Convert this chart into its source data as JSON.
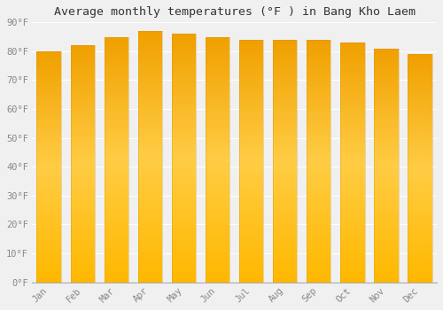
{
  "title": "Average monthly temperatures (°F ) in Bang Kho Laem",
  "months": [
    "Jan",
    "Feb",
    "Mar",
    "Apr",
    "May",
    "Jun",
    "Jul",
    "Aug",
    "Sep",
    "Oct",
    "Nov",
    "Dec"
  ],
  "values": [
    80,
    82,
    85,
    87,
    86,
    85,
    84,
    84,
    84,
    83,
    81,
    79
  ],
  "ylim": [
    0,
    90
  ],
  "yticks": [
    0,
    10,
    20,
    30,
    40,
    50,
    60,
    70,
    80,
    90
  ],
  "ytick_labels": [
    "0°F",
    "10°F",
    "20°F",
    "30°F",
    "40°F",
    "50°F",
    "60°F",
    "70°F",
    "80°F",
    "90°F"
  ],
  "bar_color_top": "#F5A800",
  "bar_color_mid": "#FFCC33",
  "bar_color_bottom": "#FFB800",
  "background_color": "#f0f0f0",
  "grid_color": "#ffffff",
  "title_fontsize": 9.5,
  "tick_fontsize": 7.5,
  "bar_width": 0.72
}
